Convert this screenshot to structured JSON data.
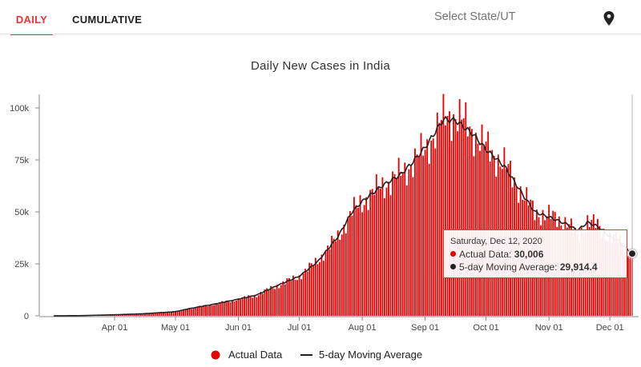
{
  "tabs": {
    "daily": "DAILY",
    "cumulative": "CUMULATIVE"
  },
  "state_select": {
    "placeholder": "Select State/UT",
    "icon": "map-pin-icon"
  },
  "colors": {
    "accent": "#e53935",
    "bar": "#e60000",
    "line": "#222222"
  },
  "tooltip": {
    "date": "Saturday, Dec 12, 2020",
    "actual_label": "Actual Data: ",
    "actual_value": "30,006",
    "avg_label": "5-day Moving Average: ",
    "avg_value": "29,914.4"
  },
  "chart_data": {
    "type": "bar",
    "title": "Daily New Cases in India",
    "x_range": [
      "2020-03-02",
      "2020-12-12"
    ],
    "ylim": [
      0,
      110000
    ],
    "y_ticks": [
      0,
      25000,
      50000,
      75000,
      100000
    ],
    "y_tick_labels": [
      "0",
      "25k",
      "50k",
      "75k",
      "100k"
    ],
    "x_ticks": [
      "2020-04-01",
      "2020-05-01",
      "2020-06-01",
      "2020-07-01",
      "2020-08-01",
      "2020-09-01",
      "2020-10-01",
      "2020-11-01",
      "2020-12-01"
    ],
    "x_tick_labels": [
      "Apr 01",
      "May 01",
      "Jun 01",
      "Jul 01",
      "Aug 01",
      "Sep 01",
      "Oct 01",
      "Nov 01",
      "Dec 01"
    ],
    "grid": false,
    "legend_position": "bottom",
    "series": [
      {
        "name": "Actual Data",
        "type": "bar",
        "color": "#e60000",
        "anchors": [
          [
            "2020-03-02",
            0
          ],
          [
            "2020-03-15",
            100
          ],
          [
            "2020-04-01",
            500
          ],
          [
            "2020-04-15",
            1000
          ],
          [
            "2020-05-01",
            2000
          ],
          [
            "2020-05-08",
            3500
          ],
          [
            "2020-05-20",
            5600
          ],
          [
            "2020-06-01",
            8000
          ],
          [
            "2020-06-10",
            10000
          ],
          [
            "2020-06-20",
            14500
          ],
          [
            "2020-07-01",
            19000
          ],
          [
            "2020-07-10",
            26500
          ],
          [
            "2020-07-20",
            38000
          ],
          [
            "2020-07-27",
            50000
          ],
          [
            "2020-08-01",
            55000
          ],
          [
            "2020-08-10",
            62000
          ],
          [
            "2020-08-20",
            68000
          ],
          [
            "2020-08-25",
            73000
          ],
          [
            "2020-09-01",
            80000
          ],
          [
            "2020-09-10",
            95000
          ],
          [
            "2020-09-16",
            97000
          ],
          [
            "2020-09-25",
            88000
          ],
          [
            "2020-10-01",
            81000
          ],
          [
            "2020-10-10",
            73000
          ],
          [
            "2020-10-20",
            57000
          ],
          [
            "2020-10-25",
            50000
          ],
          [
            "2020-11-01",
            48000
          ],
          [
            "2020-11-10",
            45000
          ],
          [
            "2020-11-15",
            38000
          ],
          [
            "2020-11-20",
            46000
          ],
          [
            "2020-11-25",
            43000
          ],
          [
            "2020-12-01",
            38000
          ],
          [
            "2020-12-05",
            36500
          ],
          [
            "2020-12-12",
            30006
          ]
        ]
      },
      {
        "name": "5-day Moving Average",
        "type": "line",
        "color": "#222222",
        "anchors": [
          [
            "2020-03-02",
            0
          ],
          [
            "2020-03-15",
            100
          ],
          [
            "2020-04-01",
            500
          ],
          [
            "2020-04-15",
            1000
          ],
          [
            "2020-05-01",
            2000
          ],
          [
            "2020-05-08",
            3500
          ],
          [
            "2020-05-20",
            5600
          ],
          [
            "2020-06-01",
            8000
          ],
          [
            "2020-06-10",
            10000
          ],
          [
            "2020-06-20",
            14500
          ],
          [
            "2020-07-01",
            19000
          ],
          [
            "2020-07-10",
            26000
          ],
          [
            "2020-07-20",
            38000
          ],
          [
            "2020-07-27",
            50000
          ],
          [
            "2020-08-01",
            55000
          ],
          [
            "2020-08-10",
            62000
          ],
          [
            "2020-08-20",
            68000
          ],
          [
            "2020-08-25",
            73000
          ],
          [
            "2020-09-01",
            81000
          ],
          [
            "2020-09-10",
            94500
          ],
          [
            "2020-09-16",
            94000
          ],
          [
            "2020-09-25",
            87000
          ],
          [
            "2020-10-01",
            80000
          ],
          [
            "2020-10-10",
            72000
          ],
          [
            "2020-10-20",
            57000
          ],
          [
            "2020-10-25",
            50000
          ],
          [
            "2020-11-01",
            47500
          ],
          [
            "2020-11-10",
            44000
          ],
          [
            "2020-11-15",
            41000
          ],
          [
            "2020-11-20",
            45000
          ],
          [
            "2020-11-25",
            43000
          ],
          [
            "2020-12-01",
            38000
          ],
          [
            "2020-12-05",
            36000
          ],
          [
            "2020-12-12",
            29914.4
          ]
        ]
      }
    ],
    "highlight": {
      "date": "2020-12-12",
      "actual": 30006,
      "moving_average": 29914.4
    }
  }
}
